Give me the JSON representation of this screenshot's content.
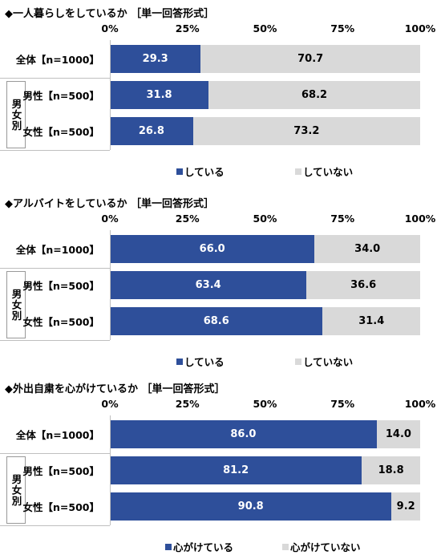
{
  "ticks": [
    "0%",
    "25%",
    "50%",
    "75%",
    "100%"
  ],
  "group_label": "男女別",
  "chart_data": [
    {
      "type": "bar",
      "stacked": true,
      "orientation": "horizontal",
      "title": "◆一人暮らしをしているか ［単一回答形式］",
      "categories": [
        "全体【n=1000】",
        "男性【n=500】",
        "女性【n=500】"
      ],
      "series": [
        {
          "name": "している",
          "values": [
            29.3,
            31.8,
            26.8
          ],
          "color": "#2e4f9a"
        },
        {
          "name": "していない",
          "values": [
            70.7,
            68.2,
            73.2
          ],
          "color": "#d9d9d9"
        }
      ],
      "xlim": [
        0,
        100
      ],
      "legend": "bottom"
    },
    {
      "type": "bar",
      "stacked": true,
      "orientation": "horizontal",
      "title": "◆アルバイトをしているか ［単一回答形式］",
      "categories": [
        "全体【n=1000】",
        "男性【n=500】",
        "女性【n=500】"
      ],
      "series": [
        {
          "name": "している",
          "values": [
            66.0,
            63.4,
            68.6
          ],
          "color": "#2e4f9a"
        },
        {
          "name": "していない",
          "values": [
            34.0,
            36.6,
            31.4
          ],
          "color": "#d9d9d9"
        }
      ],
      "xlim": [
        0,
        100
      ],
      "legend": "bottom"
    },
    {
      "type": "bar",
      "stacked": true,
      "orientation": "horizontal",
      "title": "◆外出自粛を心がけているか ［単一回答形式］",
      "categories": [
        "全体【n=1000】",
        "男性【n=500】",
        "女性【n=500】"
      ],
      "series": [
        {
          "name": "心がけている",
          "values": [
            86.0,
            81.2,
            90.8
          ],
          "color": "#2e4f9a"
        },
        {
          "name": "心がけていない",
          "values": [
            14.0,
            18.8,
            9.2
          ],
          "color": "#d9d9d9"
        }
      ],
      "xlim": [
        0,
        100
      ],
      "legend": "bottom"
    }
  ]
}
